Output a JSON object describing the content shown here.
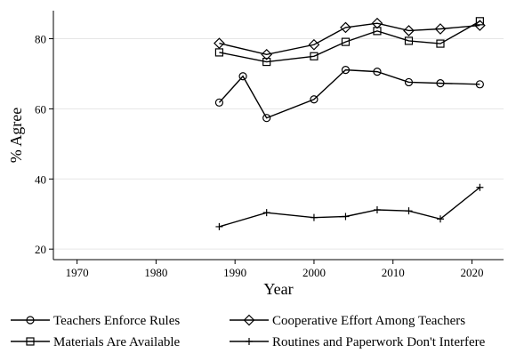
{
  "chart_data": {
    "type": "line",
    "xlabel": "Year",
    "ylabel": "% Agree",
    "xlim": [
      1967,
      2024
    ],
    "ylim": [
      17,
      88
    ],
    "xticks": [
      1970,
      1980,
      1990,
      2000,
      2010,
      2020
    ],
    "yticks": [
      20,
      40,
      60,
      80
    ],
    "grid": "horizontal",
    "legend_placement": "bottom",
    "series": [
      {
        "name": "Teachers Enforce Rules",
        "marker": "circle",
        "x": [
          1988,
          1991,
          1994,
          2000,
          2004,
          2008,
          2012,
          2016,
          2021
        ],
        "values": [
          61.8,
          69.3,
          57.4,
          62.7,
          71.1,
          70.6,
          67.6,
          67.3,
          67.0
        ]
      },
      {
        "name": "Cooperative Effort Among Teachers",
        "marker": "diamond",
        "x": [
          1988,
          1994,
          2000,
          2004,
          2008,
          2012,
          2016,
          2021
        ],
        "values": [
          78.7,
          75.5,
          78.3,
          83.2,
          84.4,
          82.3,
          82.8,
          83.8
        ]
      },
      {
        "name": "Materials Are Available",
        "marker": "square",
        "x": [
          1988,
          1994,
          2000,
          2004,
          2008,
          2012,
          2016,
          2021
        ],
        "values": [
          76.1,
          73.4,
          75.0,
          79.1,
          82.2,
          79.4,
          78.6,
          85.0
        ]
      },
      {
        "name": "Routines and Paperwork Don't Interfere",
        "marker": "plus",
        "x": [
          1988,
          1994,
          2000,
          2004,
          2008,
          2012,
          2016,
          2021
        ],
        "values": [
          26.4,
          30.4,
          29.0,
          29.3,
          31.2,
          30.9,
          28.6,
          37.6
        ]
      }
    ]
  }
}
